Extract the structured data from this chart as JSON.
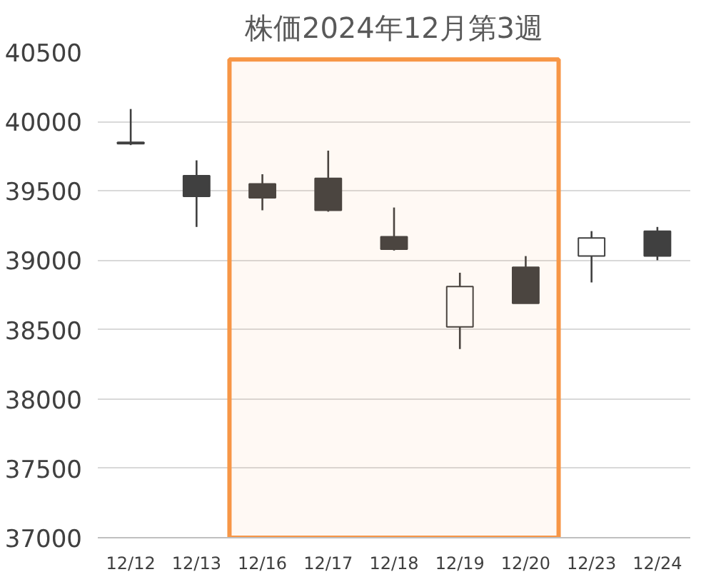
{
  "chart_data": {
    "type": "candlestick",
    "title": "株価2024年12月第3週",
    "categories": [
      "12/12",
      "12/13",
      "12/16",
      "12/17",
      "12/18",
      "12/19",
      "12/20",
      "12/23",
      "12/24"
    ],
    "ohlc": [
      [
        39850,
        40090,
        39830,
        39840
      ],
      [
        39610,
        39720,
        39240,
        39460
      ],
      [
        39550,
        39620,
        39360,
        39450
      ],
      [
        39590,
        39790,
        39350,
        39360
      ],
      [
        39170,
        39380,
        39070,
        39080
      ],
      [
        38520,
        38910,
        38360,
        38810
      ],
      [
        38950,
        39030,
        38690,
        38690
      ],
      [
        39030,
        39210,
        38840,
        39160
      ],
      [
        39210,
        39240,
        39000,
        39030
      ]
    ],
    "colors": [
      "#404040",
      "#404040",
      "#404040",
      "#404040",
      "#404040",
      "#ffffff",
      "#404040",
      "#ffffff",
      "#404040"
    ],
    "ylim": [
      37000,
      40500
    ],
    "yticks": [
      37000,
      37500,
      38000,
      38500,
      39000,
      39500,
      40000,
      40500
    ],
    "grid": "y",
    "bands": [
      {
        "axis": "x",
        "from": "12/16",
        "to": "12/20",
        "color": "#f79646"
      }
    ]
  }
}
